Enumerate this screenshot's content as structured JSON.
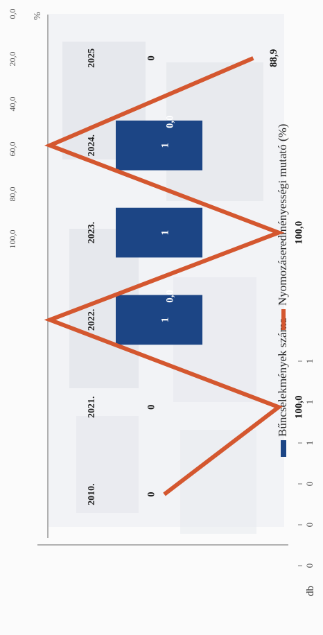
{
  "chart_data": {
    "type": "bar+line",
    "categories": [
      "2010.",
      "2021.",
      "2022.",
      "2023.",
      "2024.",
      "2025"
    ],
    "series": [
      {
        "name": "Bűncselekmények száma",
        "type": "bar",
        "axis": "left",
        "values": [
          0,
          0,
          1,
          1,
          1,
          0
        ],
        "labels": [
          "0",
          "0",
          "1",
          "1",
          "1",
          "0"
        ],
        "color": "#1c4585"
      },
      {
        "name": "Nyomozáseredményességi mutató (%)",
        "type": "line",
        "axis": "right",
        "values": [
          50,
          100,
          0,
          100,
          0,
          88.9
        ],
        "labels": [
          "",
          "100,0",
          "0,0",
          "100,0",
          "0,0",
          "88,9"
        ],
        "color": "#d4572f"
      }
    ],
    "y_left": {
      "unit_label": "db",
      "ticks": [
        "0",
        "0",
        "0",
        "1",
        "1",
        "1"
      ],
      "ylim": [
        0,
        1.2
      ]
    },
    "y_right": {
      "unit_label": "%",
      "ticks": [
        "0,0",
        "20,0",
        "40,0",
        "60,0",
        "80,0",
        "100,0"
      ],
      "ylim": [
        0,
        100
      ]
    },
    "legend_placement": "top",
    "grid": false
  }
}
